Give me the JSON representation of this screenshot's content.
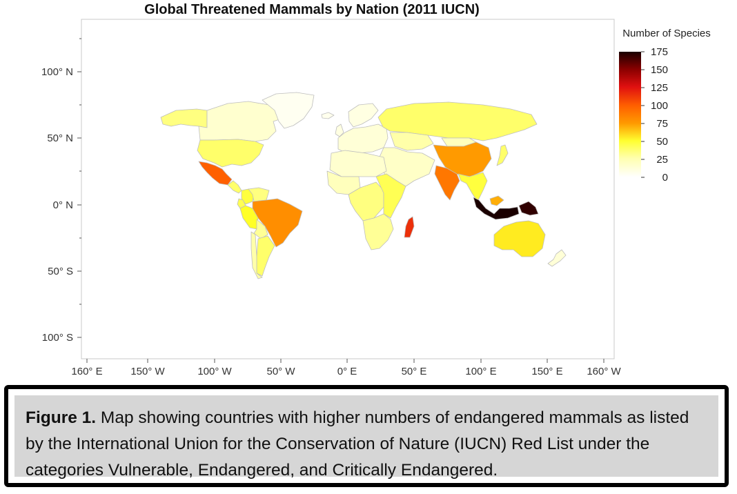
{
  "chart": {
    "title": "Global Threatened Mammals by Nation (2011 IUCN)",
    "y_ticks": [
      "100° N",
      "50° N",
      "0° N",
      "50° S",
      "100° S"
    ],
    "x_ticks": [
      "160° E",
      "150° W",
      "100° W",
      "50° W",
      "0° E",
      "50° E",
      "100° E",
      "150° E",
      "160° W"
    ],
    "legend": {
      "title": "Number of Species",
      "ticks": [
        "175",
        "150",
        "125",
        "100",
        "75",
        "50",
        "25",
        "0"
      ]
    },
    "colors": {
      "scale_low": "#ffffe8",
      "scale_mid_low": "#ffff40",
      "scale_mid": "#ff9a00",
      "scale_high": "#e01010",
      "scale_top": "#2a0000",
      "plot_border": "#c8c8c8"
    }
  },
  "map_data": {
    "value_range": [
      0,
      175
    ],
    "regions": [
      {
        "name": "Canada",
        "value": 10
      },
      {
        "name": "Alaska",
        "value": 30
      },
      {
        "name": "Greenland",
        "value": 1
      },
      {
        "name": "United States",
        "value": 35
      },
      {
        "name": "Mexico",
        "value": 100
      },
      {
        "name": "Central America",
        "value": 35
      },
      {
        "name": "Colombia",
        "value": 45
      },
      {
        "name": "Venezuela",
        "value": 30
      },
      {
        "name": "Ecuador",
        "value": 40
      },
      {
        "name": "Peru",
        "value": 50
      },
      {
        "name": "Brazil",
        "value": 80
      },
      {
        "name": "Bolivia",
        "value": 25
      },
      {
        "name": "Argentina",
        "value": 35
      },
      {
        "name": "Chile",
        "value": 20
      },
      {
        "name": "Europe",
        "value": 8
      },
      {
        "name": "Iceland",
        "value": 2
      },
      {
        "name": "United Kingdom",
        "value": 5
      },
      {
        "name": "Scandinavia",
        "value": 5
      },
      {
        "name": "Russia",
        "value": 35
      },
      {
        "name": "Kazakhstan",
        "value": 20
      },
      {
        "name": "Middle East",
        "value": 12
      },
      {
        "name": "North Africa",
        "value": 10
      },
      {
        "name": "West Africa",
        "value": 15
      },
      {
        "name": "Central Africa",
        "value": 30
      },
      {
        "name": "East Africa",
        "value": 40
      },
      {
        "name": "Southern Africa",
        "value": 25
      },
      {
        "name": "Madagascar",
        "value": 115
      },
      {
        "name": "India",
        "value": 90
      },
      {
        "name": "China",
        "value": 75
      },
      {
        "name": "Mongolia",
        "value": 15
      },
      {
        "name": "Southeast Asia",
        "value": 45
      },
      {
        "name": "Japan",
        "value": 35
      },
      {
        "name": "Indonesia",
        "value": 175
      },
      {
        "name": "Malaysia",
        "value": 70
      },
      {
        "name": "Papua New Guinea",
        "value": 170
      },
      {
        "name": "Australia",
        "value": 55
      },
      {
        "name": "New Zealand",
        "value": 8
      }
    ]
  },
  "caption": {
    "label": "Figure 1.",
    "text": " Map showing countries with higher numbers of endangered mammals as listed by the International Union for the Conservation of Nature (IUCN) Red List under the categories Vulnerable, Endangered, and Critically Endangered."
  }
}
